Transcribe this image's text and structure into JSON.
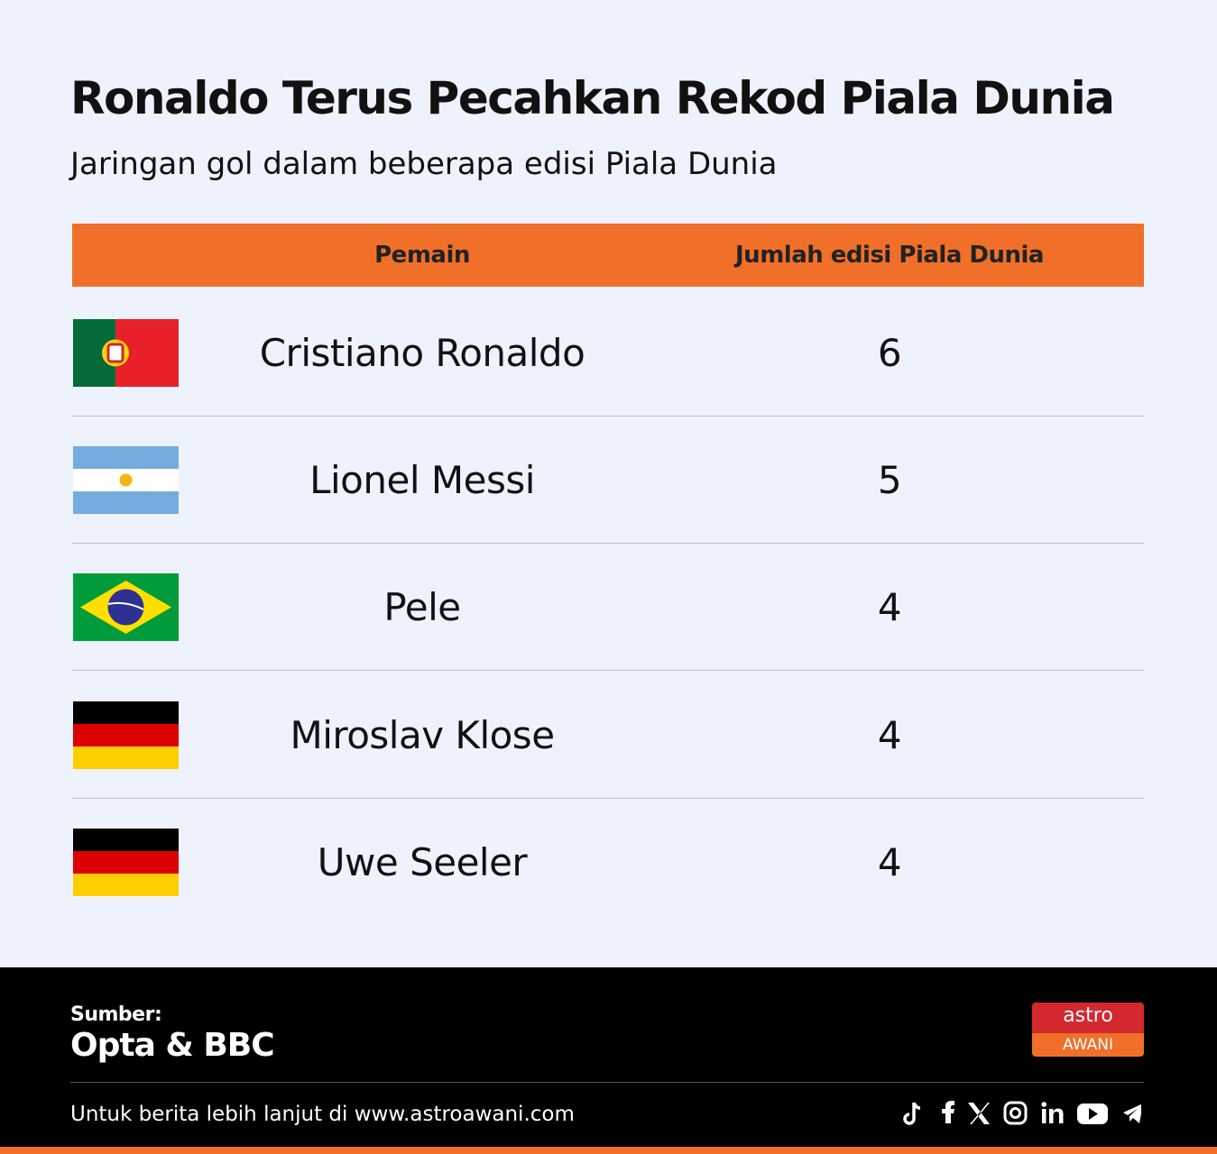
{
  "header": {
    "title": "Ronaldo Terus Pecahkan Rekod Piala Dunia",
    "subtitle": "Jaringan gol dalam beberapa edisi Piala Dunia"
  },
  "table": {
    "columns": [
      "Pemain",
      "Jumlah edisi Piala Dunia"
    ],
    "rows": [
      [
        "Cristiano Ronaldo",
        "6"
      ],
      [
        "Lionel Messi",
        "5"
      ],
      [
        "Pele",
        "4"
      ],
      [
        "Miroslav Klose",
        "4"
      ],
      [
        "Uwe Seeler",
        "4"
      ]
    ]
  },
  "footer": {
    "source_label": "Sumber:",
    "source": "Opta & BBC",
    "logo_top": "astro",
    "logo_bottom": "AWANI",
    "link": "Untuk berita lebih lanjut di www.astroawani.com"
  }
}
